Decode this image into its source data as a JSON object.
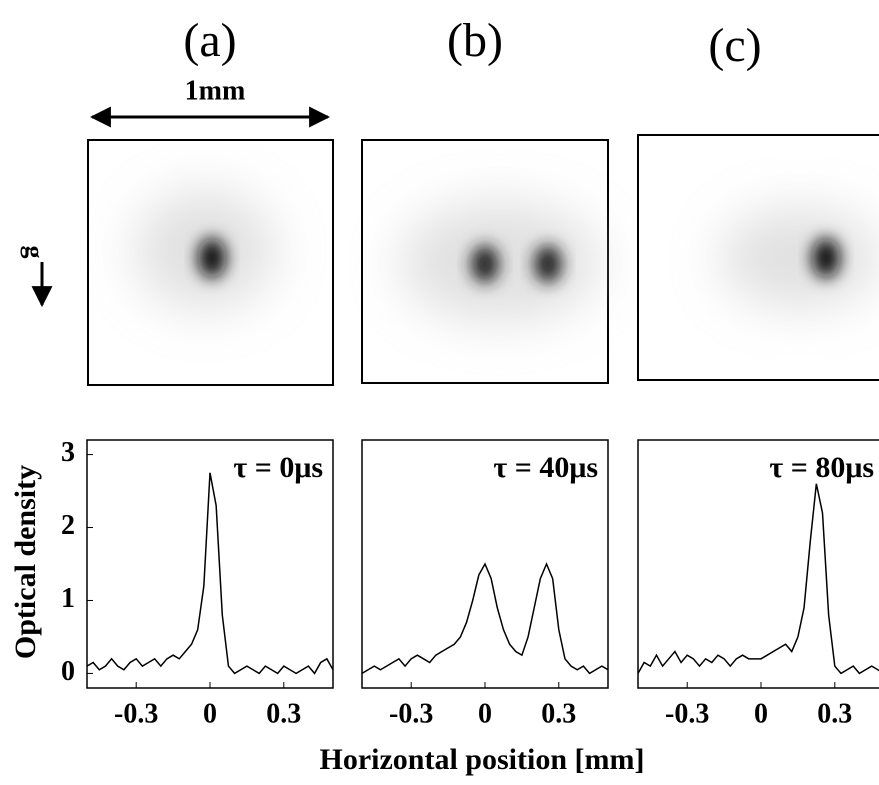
{
  "chart_data": [
    {
      "type": "line",
      "panel_label": "(a)",
      "scale_label": "1mm",
      "gravity_label": "g",
      "annotation": "τ = 0μs",
      "ylabel": "Optical density",
      "x": [
        -0.5,
        -0.475,
        -0.45,
        -0.425,
        -0.4,
        -0.375,
        -0.35,
        -0.325,
        -0.3,
        -0.275,
        -0.25,
        -0.225,
        -0.2,
        -0.175,
        -0.15,
        -0.125,
        -0.1,
        -0.075,
        -0.05,
        -0.025,
        0,
        0.025,
        0.05,
        0.075,
        0.1,
        0.125,
        0.15,
        0.175,
        0.2,
        0.225,
        0.25,
        0.275,
        0.3,
        0.325,
        0.35,
        0.375,
        0.4,
        0.425,
        0.45,
        0.475,
        0.5
      ],
      "values": [
        0.1,
        0.15,
        0.05,
        0.1,
        0.2,
        0.1,
        0.05,
        0.15,
        0.2,
        0.1,
        0.15,
        0.2,
        0.1,
        0.2,
        0.25,
        0.2,
        0.3,
        0.4,
        0.6,
        1.2,
        2.75,
        2.3,
        0.8,
        0.1,
        0.0,
        0.05,
        0.1,
        0.05,
        0.0,
        0.1,
        0.05,
        0.0,
        0.1,
        0.05,
        0.0,
        0.05,
        0.1,
        0.0,
        0.15,
        0.2,
        0.05
      ],
      "color": "#000000",
      "xlim": [
        -0.5,
        0.5
      ],
      "xticks": [
        -0.3,
        0,
        0.3
      ],
      "ylim": [
        -0.2,
        3.2
      ],
      "yticks": [
        0,
        1,
        2,
        3
      ]
    },
    {
      "type": "line",
      "panel_label": "(b)",
      "annotation": "τ = 40μs",
      "xlabel": "Horizontal position [mm]",
      "x": [
        -0.5,
        -0.475,
        -0.45,
        -0.425,
        -0.4,
        -0.375,
        -0.35,
        -0.325,
        -0.3,
        -0.275,
        -0.25,
        -0.225,
        -0.2,
        -0.175,
        -0.15,
        -0.125,
        -0.1,
        -0.075,
        -0.05,
        -0.025,
        0,
        0.025,
        0.05,
        0.075,
        0.1,
        0.125,
        0.15,
        0.175,
        0.2,
        0.225,
        0.25,
        0.275,
        0.3,
        0.325,
        0.35,
        0.375,
        0.4,
        0.425,
        0.45,
        0.475,
        0.5
      ],
      "values": [
        0.0,
        0.05,
        0.1,
        0.05,
        0.1,
        0.15,
        0.2,
        0.1,
        0.2,
        0.25,
        0.2,
        0.15,
        0.25,
        0.3,
        0.35,
        0.4,
        0.5,
        0.7,
        1.0,
        1.35,
        1.5,
        1.3,
        0.9,
        0.6,
        0.4,
        0.3,
        0.25,
        0.5,
        0.9,
        1.3,
        1.5,
        1.3,
        0.6,
        0.2,
        0.1,
        0.05,
        0.1,
        0.0,
        0.05,
        0.1,
        0.05
      ],
      "color": "#000000",
      "xlim": [
        -0.5,
        0.5
      ],
      "xticks": [
        -0.3,
        0,
        0.3
      ],
      "ylim": [
        -0.2,
        3.2
      ]
    },
    {
      "type": "line",
      "panel_label": "(c)",
      "annotation": "τ = 80μs",
      "x": [
        -0.5,
        -0.475,
        -0.45,
        -0.425,
        -0.4,
        -0.375,
        -0.35,
        -0.325,
        -0.3,
        -0.275,
        -0.25,
        -0.225,
        -0.2,
        -0.175,
        -0.15,
        -0.125,
        -0.1,
        -0.075,
        -0.05,
        -0.025,
        0,
        0.025,
        0.05,
        0.075,
        0.1,
        0.125,
        0.15,
        0.175,
        0.2,
        0.225,
        0.25,
        0.275,
        0.3,
        0.325,
        0.35,
        0.375,
        0.4,
        0.425,
        0.45,
        0.475,
        0.5
      ],
      "values": [
        0.0,
        0.15,
        0.1,
        0.25,
        0.1,
        0.2,
        0.3,
        0.15,
        0.25,
        0.2,
        0.1,
        0.2,
        0.15,
        0.25,
        0.2,
        0.1,
        0.2,
        0.25,
        0.2,
        0.2,
        0.2,
        0.25,
        0.3,
        0.35,
        0.4,
        0.3,
        0.5,
        0.9,
        1.8,
        2.6,
        2.2,
        0.8,
        0.1,
        0.0,
        0.05,
        0.1,
        0.0,
        0.05,
        0.1,
        0.05,
        0.0
      ],
      "color": "#000000",
      "xlim": [
        -0.5,
        0.5
      ],
      "xticks": [
        -0.3,
        0,
        0.3
      ],
      "ylim": [
        -0.2,
        3.2
      ]
    }
  ]
}
